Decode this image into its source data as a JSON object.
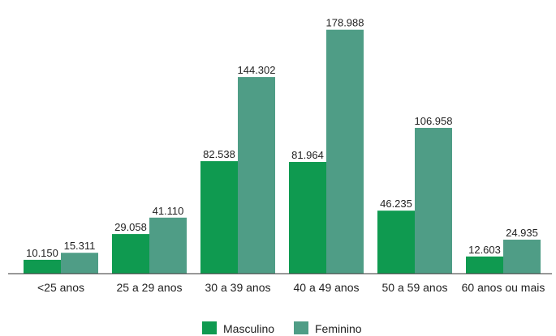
{
  "chart_data": {
    "type": "bar",
    "categories": [
      "<25 anos",
      "25 a 29 anos",
      "30 a 39 anos",
      "40 a 49 anos",
      "50 a 59 anos",
      "60 anos ou mais"
    ],
    "series": [
      {
        "name": "Masculino",
        "color": "#0f9a50",
        "values": [
          10150,
          29058,
          82538,
          81964,
          46235,
          12603
        ],
        "labels": [
          "10.150",
          "29.058",
          "82.538",
          "81.964",
          "46.235",
          "12.603"
        ]
      },
      {
        "name": "Feminino",
        "color": "#4f9d86",
        "values": [
          15311,
          41110,
          144302,
          178988,
          106958,
          24935
        ],
        "labels": [
          "15.311",
          "41.110",
          "144.302",
          "178.988",
          "106.958",
          "24.935"
        ]
      }
    ],
    "ylim": [
      0,
      180000
    ],
    "grid": false,
    "legend_position": "bottom-center"
  }
}
